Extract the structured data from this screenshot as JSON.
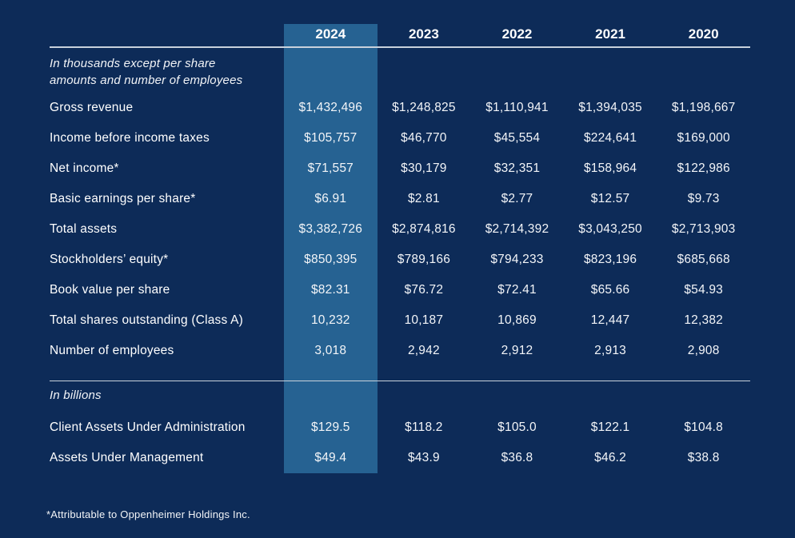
{
  "page": {
    "background_color": "#0d2b58",
    "highlight_color": "#266292",
    "rule_color": "#c9d2dc",
    "highlighted_year": "2024"
  },
  "table": {
    "year_columns": [
      "2024",
      "2023",
      "2022",
      "2021",
      "2020"
    ],
    "sections": [
      {
        "note": "In thousands except per share amounts and number of employees",
        "rows": [
          {
            "label": "Gross revenue",
            "values": [
              "$1,432,496",
              "$1,248,825",
              "$1,110,941",
              "$1,394,035",
              "$1,198,667"
            ]
          },
          {
            "label": "Income before income taxes",
            "values": [
              "$105,757",
              "$46,770",
              "$45,554",
              "$224,641",
              "$169,000"
            ]
          },
          {
            "label": "Net income*",
            "values": [
              "$71,557",
              "$30,179",
              "$32,351",
              "$158,964",
              "$122,986"
            ]
          },
          {
            "label": "Basic earnings per share*",
            "values": [
              "$6.91",
              "$2.81",
              "$2.77",
              "$12.57",
              "$9.73"
            ]
          },
          {
            "label": "Total assets",
            "values": [
              "$3,382,726",
              "$2,874,816",
              "$2,714,392",
              "$3,043,250",
              "$2,713,903"
            ]
          },
          {
            "label": "Stockholders’ equity*",
            "values": [
              "$850,395",
              "$789,166",
              "$794,233",
              "$823,196",
              "$685,668"
            ]
          },
          {
            "label": "Book value per share",
            "values": [
              "$82.31",
              "$76.72",
              "$72.41",
              "$65.66",
              "$54.93"
            ]
          },
          {
            "label": "Total shares outstanding (Class A)",
            "values": [
              "10,232",
              "10,187",
              "10,869",
              "12,447",
              "12,382"
            ]
          },
          {
            "label": "Number of employees",
            "values": [
              "3,018",
              "2,942",
              "2,912",
              "2,913",
              "2,908"
            ]
          }
        ]
      },
      {
        "note": "In billions",
        "rows": [
          {
            "label": "Client Assets Under Administration",
            "values": [
              "$129.5",
              "$118.2",
              "$105.0",
              "$122.1",
              "$104.8"
            ]
          },
          {
            "label": "Assets Under Management",
            "values": [
              "$49.4",
              "$43.9",
              "$36.8",
              "$46.2",
              "$38.8"
            ]
          }
        ]
      }
    ],
    "footnote": "*Attributable to Oppenheimer Holdings Inc."
  }
}
